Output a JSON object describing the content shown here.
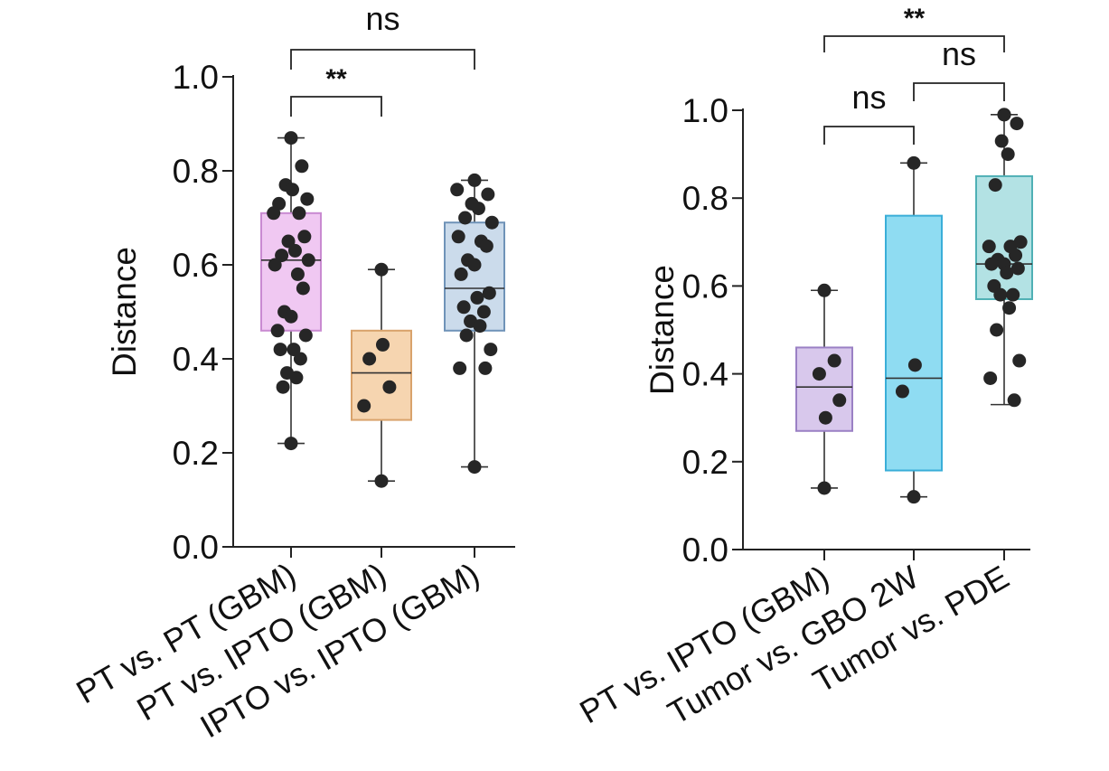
{
  "chart_data": [
    {
      "type": "box",
      "ylabel": "Distance",
      "ylim": [
        0,
        1.0
      ],
      "yticks": [
        0.0,
        0.2,
        0.4,
        0.6,
        0.8,
        1.0
      ],
      "ytick_labels": [
        "0.0",
        "0.2",
        "0.4",
        "0.6",
        "0.8",
        "1.0"
      ],
      "categories": [
        "PT vs. PT (GBM)",
        "PT vs. IPTO (GBM)",
        "IPTO vs. IPTO (GBM)"
      ],
      "colors": [
        "#f0c8f2",
        "#f6d5b0",
        "#cbdbeb"
      ],
      "edge_colors": [
        "#c98ad1",
        "#d9a26b",
        "#6f93b8"
      ],
      "boxes": [
        {
          "min": 0.22,
          "q1": 0.46,
          "median": 0.61,
          "q3": 0.71,
          "max": 0.87
        },
        {
          "min": 0.14,
          "q1": 0.27,
          "median": 0.37,
          "q3": 0.46,
          "max": 0.59
        },
        {
          "min": 0.17,
          "q1": 0.46,
          "median": 0.55,
          "q3": 0.69,
          "max": 0.78
        }
      ],
      "points": [
        [
          0.87,
          0.81,
          0.77,
          0.74,
          0.76,
          0.73,
          0.71,
          0.71,
          0.66,
          0.65,
          0.63,
          0.62,
          0.61,
          0.6,
          0.58,
          0.55,
          0.5,
          0.49,
          0.46,
          0.45,
          0.42,
          0.42,
          0.4,
          0.37,
          0.36,
          0.34,
          0.22
        ],
        [
          0.59,
          0.43,
          0.4,
          0.34,
          0.3,
          0.14
        ],
        [
          0.78,
          0.76,
          0.75,
          0.73,
          0.72,
          0.7,
          0.69,
          0.66,
          0.65,
          0.64,
          0.61,
          0.6,
          0.58,
          0.54,
          0.53,
          0.51,
          0.5,
          0.48,
          0.47,
          0.45,
          0.42,
          0.38,
          0.38,
          0.17
        ]
      ],
      "significance": [
        {
          "from": 0,
          "to": 1,
          "label": "**"
        },
        {
          "from": 0,
          "to": 2,
          "label": "ns"
        }
      ]
    },
    {
      "type": "box",
      "ylabel": "Distance",
      "ylim": [
        0,
        1.0
      ],
      "yticks": [
        0.0,
        0.2,
        0.4,
        0.6,
        0.8,
        1.0
      ],
      "ytick_labels": [
        "0.0",
        "0.2",
        "0.4",
        "0.6",
        "0.8",
        "1.0"
      ],
      "categories": [
        "PT vs. IPTO (GBM)",
        "Tumor vs. GBO 2W",
        "Tumor vs. PDE"
      ],
      "colors": [
        "#d8c8ec",
        "#8fdcf2",
        "#b3e2e4"
      ],
      "edge_colors": [
        "#9a80c4",
        "#3aaed8",
        "#4fb0b5"
      ],
      "boxes": [
        {
          "min": 0.14,
          "q1": 0.27,
          "median": 0.37,
          "q3": 0.46,
          "max": 0.59
        },
        {
          "min": 0.12,
          "q1": 0.18,
          "median": 0.39,
          "q3": 0.76,
          "max": 0.88
        },
        {
          "min": 0.33,
          "q1": 0.57,
          "median": 0.65,
          "q3": 0.85,
          "max": 0.99
        }
      ],
      "points": [
        [
          0.59,
          0.43,
          0.4,
          0.34,
          0.3,
          0.14
        ],
        [
          0.88,
          0.42,
          0.36,
          0.12
        ],
        [
          0.99,
          0.99,
          0.97,
          0.93,
          0.9,
          0.83,
          0.7,
          0.69,
          0.69,
          0.67,
          0.66,
          0.65,
          0.65,
          0.64,
          0.63,
          0.6,
          0.58,
          0.58,
          0.55,
          0.5,
          0.43,
          0.39,
          0.34
        ]
      ],
      "significance": [
        {
          "from": 0,
          "to": 1,
          "label": "ns"
        },
        {
          "from": 1,
          "to": 2,
          "label": "ns"
        },
        {
          "from": 0,
          "to": 2,
          "label": "**"
        }
      ]
    }
  ]
}
